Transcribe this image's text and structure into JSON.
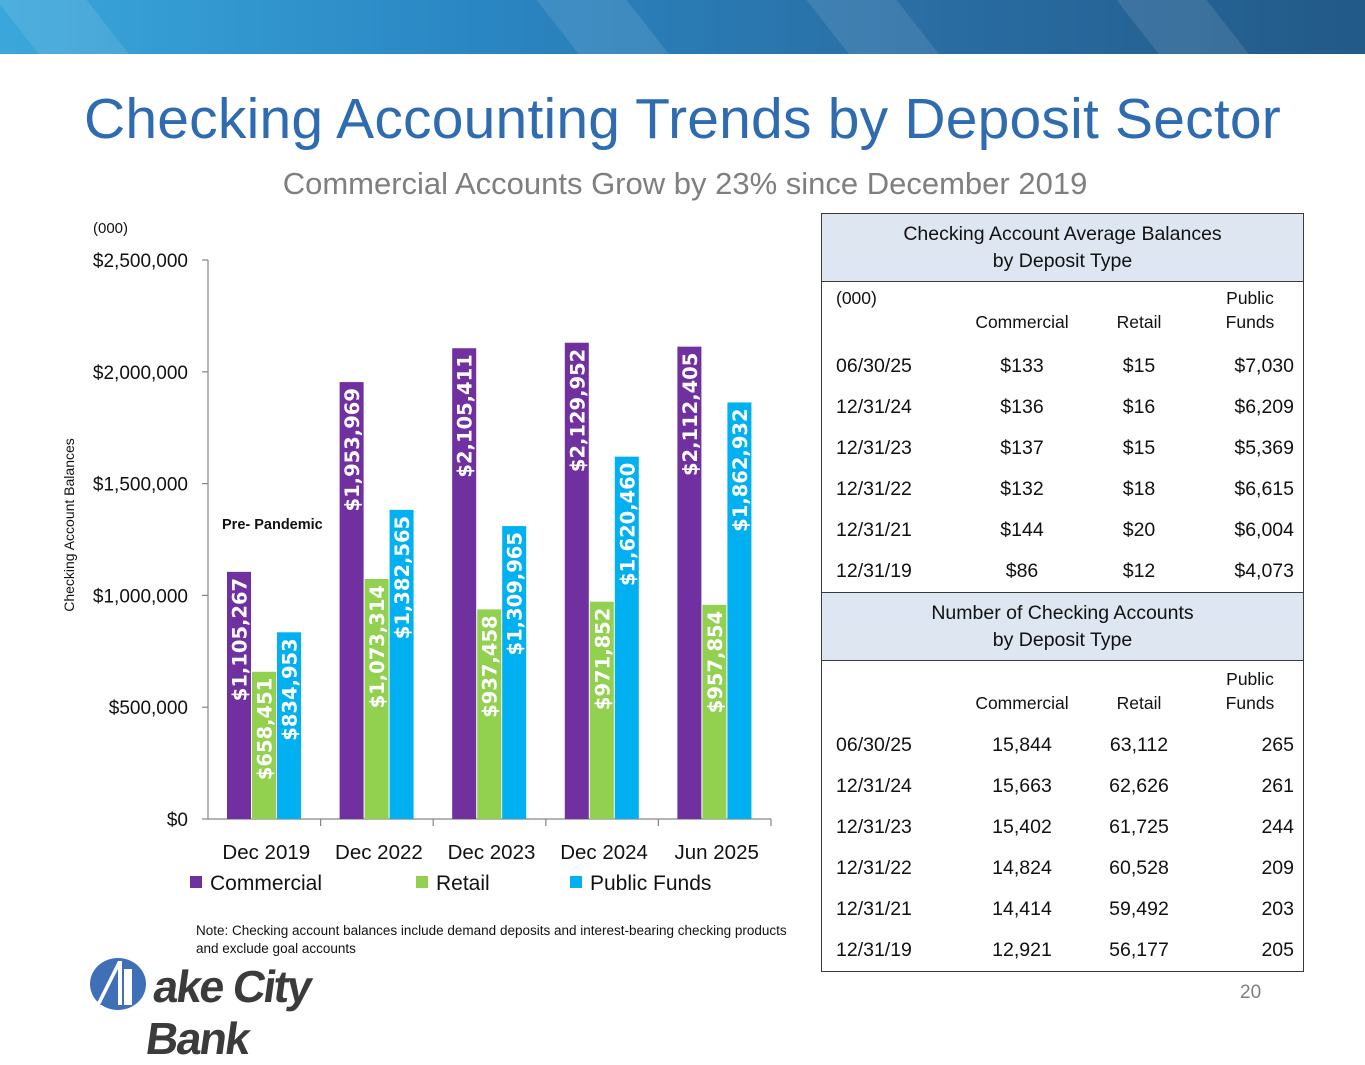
{
  "title": "Checking Accounting Trends by Deposit Sector",
  "subtitle": "Commercial Accounts Grow by 23% since December 2019",
  "colors": {
    "commercial": "#7030a0",
    "retail": "#92d050",
    "public_funds": "#00b0f0",
    "title": "#2e6bb0",
    "table_header_bg": "#dde6f1"
  },
  "chart_data": {
    "type": "bar",
    "unit_note": "(000)",
    "ylabel": "Checking Account Balances",
    "ylim": [
      0,
      2500000
    ],
    "yticks": [
      "$0",
      "$500,000",
      "$1,000,000",
      "$1,500,000",
      "$2,000,000",
      "$2,500,000"
    ],
    "ytick_values": [
      0,
      500000,
      1000000,
      1500000,
      2000000,
      2500000
    ],
    "categories": [
      "Dec 2019",
      "Dec 2022",
      "Dec 2023",
      "Dec 2024",
      "Jun 2025"
    ],
    "series": [
      {
        "name": "Commercial",
        "values": [
          1105267,
          1953969,
          2105411,
          2129952,
          2112405
        ],
        "labels": [
          "$1,105,267",
          "$1,953,969",
          "$2,105,411",
          "$2,129,952",
          "$2,112,405"
        ]
      },
      {
        "name": "Retail",
        "values": [
          658451,
          1073314,
          937458,
          971852,
          957854
        ],
        "labels": [
          "$658,451",
          "$1,073,314",
          "$937,458",
          "$971,852",
          "$957,854"
        ]
      },
      {
        "name": "Public Funds",
        "values": [
          834953,
          1382565,
          1309965,
          1620460,
          1862932
        ],
        "labels": [
          "$834,953",
          "$1,382,565",
          "$1,309,965",
          "$1,620,460",
          "$1,862,932"
        ]
      }
    ],
    "annotation": "Pre- Pandemic",
    "legend_position": "bottom"
  },
  "note": "Note: Checking account balances include demand deposits and interest-bearing checking products and exclude goal accounts",
  "logo": {
    "text": "ake City Bank"
  },
  "page_number": "20",
  "balances_table": {
    "title_line1": "Checking Account Average Balances",
    "title_line2": "by Deposit Type",
    "unit": "(000)",
    "col_commercial": "Commercial",
    "col_retail": "Retail",
    "col_public_line1": "Public",
    "col_public_line2": "Funds",
    "rows": [
      {
        "date": "06/30/25",
        "commercial": "$133",
        "retail": "$15",
        "public": "$7,030"
      },
      {
        "date": "12/31/24",
        "commercial": "$136",
        "retail": "$16",
        "public": "$6,209"
      },
      {
        "date": "12/31/23",
        "commercial": "$137",
        "retail": "$15",
        "public": "$5,369"
      },
      {
        "date": "12/31/22",
        "commercial": "$132",
        "retail": "$18",
        "public": "$6,615"
      },
      {
        "date": "12/31/21",
        "commercial": "$144",
        "retail": "$20",
        "public": "$6,004"
      },
      {
        "date": "12/31/19",
        "commercial": "$86",
        "retail": "$12",
        "public": "$4,073"
      }
    ]
  },
  "accounts_table": {
    "title_line1": "Number of Checking Accounts",
    "title_line2": "by Deposit Type",
    "col_commercial": "Commercial",
    "col_retail": "Retail",
    "col_public_line1": "Public",
    "col_public_line2": "Funds",
    "rows": [
      {
        "date": "06/30/25",
        "commercial": "15,844",
        "retail": "63,112",
        "public": "265"
      },
      {
        "date": "12/31/24",
        "commercial": "15,663",
        "retail": "62,626",
        "public": "261"
      },
      {
        "date": "12/31/23",
        "commercial": "15,402",
        "retail": "61,725",
        "public": "244"
      },
      {
        "date": "12/31/22",
        "commercial": "14,824",
        "retail": "60,528",
        "public": "209"
      },
      {
        "date": "12/31/21",
        "commercial": "14,414",
        "retail": "59,492",
        "public": "203"
      },
      {
        "date": "12/31/19",
        "commercial": "12,921",
        "retail": "56,177",
        "public": "205"
      }
    ]
  }
}
